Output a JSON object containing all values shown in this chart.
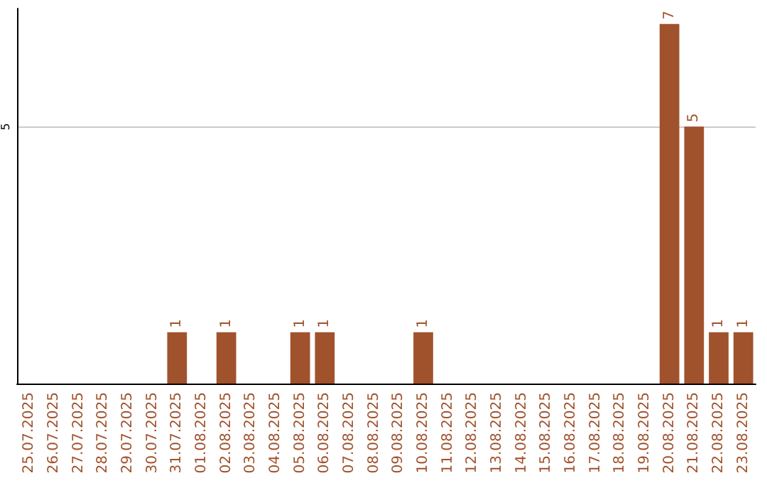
{
  "chart_data": {
    "type": "bar",
    "categories": [
      "25.07.2025",
      "26.07.2025",
      "27.07.2025",
      "28.07.2025",
      "29.07.2025",
      "30.07.2025",
      "31.07.2025",
      "01.08.2025",
      "02.08.2025",
      "03.08.2025",
      "04.08.2025",
      "05.08.2025",
      "06.08.2025",
      "07.08.2025",
      "08.08.2025",
      "09.08.2025",
      "10.08.2025",
      "11.08.2025",
      "12.08.2025",
      "13.08.2025",
      "14.08.2025",
      "15.08.2025",
      "16.08.2025",
      "17.08.2025",
      "18.08.2025",
      "19.08.2025",
      "20.08.2025",
      "21.08.2025",
      "22.08.2025",
      "23.08.2025"
    ],
    "values": [
      null,
      null,
      null,
      null,
      null,
      null,
      1,
      null,
      1,
      null,
      null,
      1,
      1,
      null,
      null,
      null,
      1,
      null,
      null,
      null,
      null,
      null,
      null,
      null,
      null,
      null,
      7,
      5,
      1,
      1
    ],
    "color": "#a0522d",
    "ylim": [
      0,
      7.3
    ],
    "yticks": [
      5
    ],
    "grid": "y",
    "data_labels": true
  }
}
